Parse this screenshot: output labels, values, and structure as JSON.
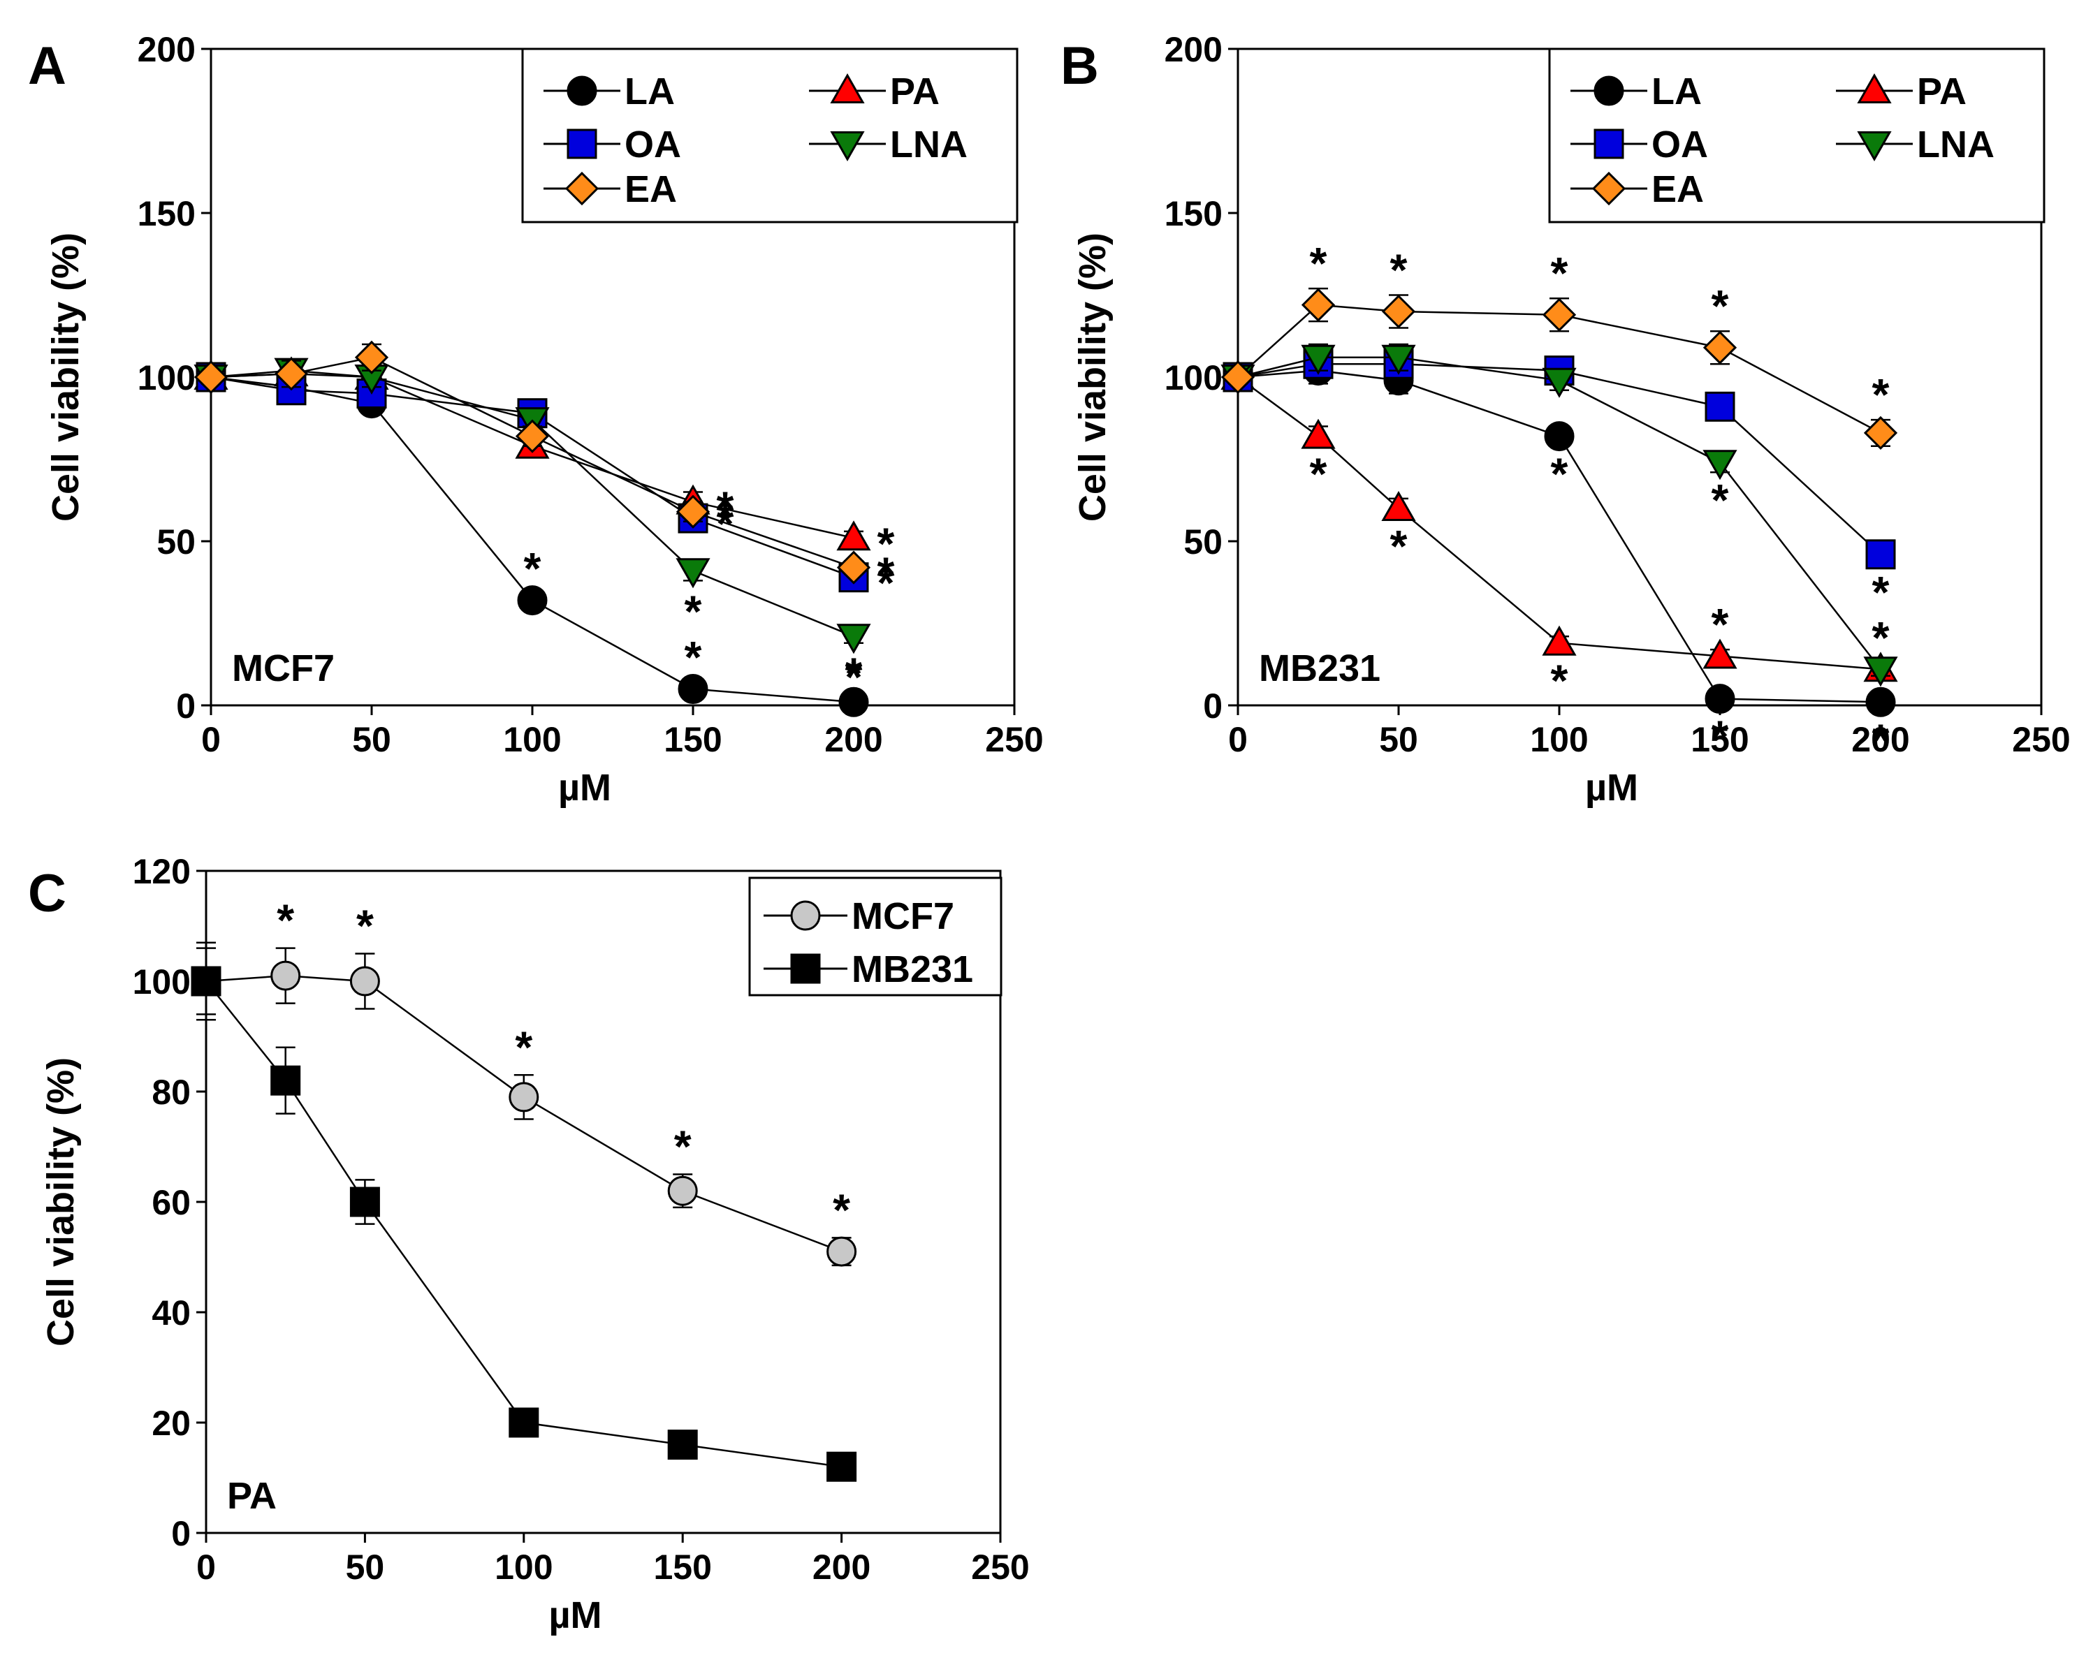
{
  "chart_data": [
    {
      "type": "line",
      "panel": "A",
      "label": "MCF7",
      "xlabel": "µM",
      "ylabel": "Cell viability (%)",
      "xlim": [
        0,
        250
      ],
      "ylim": [
        0,
        200
      ],
      "xticks": [
        0,
        50,
        100,
        150,
        200,
        250
      ],
      "yticks": [
        0,
        50,
        100,
        150,
        200
      ],
      "legend_columns": 2,
      "series": [
        {
          "name": "LA",
          "marker": "circle",
          "color": "#000000",
          "x": [
            0,
            25,
            50,
            100,
            150,
            200
          ],
          "y": [
            100,
            97,
            92,
            32,
            5,
            1
          ],
          "err": [
            2,
            4,
            3,
            2,
            2,
            1
          ],
          "stars": [
            false,
            false,
            false,
            true,
            true,
            true
          ]
        },
        {
          "name": "PA",
          "marker": "triangle-up",
          "color": "#ff0000",
          "x": [
            0,
            25,
            50,
            100,
            150,
            200
          ],
          "y": [
            100,
            101,
            100,
            79,
            62,
            51
          ],
          "err": [
            2,
            3,
            3,
            3,
            3,
            2
          ],
          "stars": [
            false,
            false,
            false,
            false,
            true,
            true
          ]
        },
        {
          "name": "OA",
          "marker": "square",
          "color": "#0000dd",
          "x": [
            0,
            25,
            50,
            100,
            150,
            200
          ],
          "y": [
            100,
            96,
            95,
            89,
            57,
            39
          ],
          "err": [
            2,
            4,
            4,
            4,
            3,
            2
          ],
          "stars": [
            false,
            false,
            false,
            false,
            true,
            true
          ]
        },
        {
          "name": "LNA",
          "marker": "triangle-down",
          "color": "#0a7a0a",
          "x": [
            0,
            25,
            50,
            100,
            150,
            200
          ],
          "y": [
            100,
            102,
            100,
            87,
            41,
            21
          ],
          "err": [
            2,
            3,
            3,
            3,
            3,
            2
          ],
          "stars": [
            false,
            false,
            false,
            false,
            true,
            true
          ]
        },
        {
          "name": "EA",
          "marker": "diamond",
          "color": "#ff8c19",
          "x": [
            0,
            25,
            50,
            100,
            150,
            200
          ],
          "y": [
            100,
            101,
            106,
            82,
            59,
            42
          ],
          "err": [
            2,
            4,
            4,
            3,
            3,
            2
          ],
          "stars": [
            false,
            false,
            false,
            false,
            true,
            true
          ]
        }
      ]
    },
    {
      "type": "line",
      "panel": "B",
      "label": "MB231",
      "xlabel": "µM",
      "ylabel": "Cell viability (%)",
      "xlim": [
        0,
        250
      ],
      "ylim": [
        0,
        200
      ],
      "xticks": [
        0,
        50,
        100,
        150,
        200,
        250
      ],
      "yticks": [
        0,
        50,
        100,
        150,
        200
      ],
      "legend_columns": 2,
      "series": [
        {
          "name": "LA",
          "marker": "circle",
          "color": "#000000",
          "x": [
            0,
            25,
            50,
            100,
            150,
            200
          ],
          "y": [
            100,
            102,
            99,
            82,
            2,
            1
          ],
          "err": [
            2,
            4,
            4,
            3,
            2,
            1
          ],
          "stars": [
            false,
            false,
            false,
            true,
            true,
            true
          ]
        },
        {
          "name": "PA",
          "marker": "triangle-up",
          "color": "#ff0000",
          "x": [
            0,
            25,
            50,
            100,
            150,
            200
          ],
          "y": [
            100,
            82,
            60,
            19,
            15,
            11
          ],
          "err": [
            2,
            3,
            3,
            2,
            2,
            2
          ],
          "stars": [
            false,
            true,
            true,
            true,
            true,
            true
          ]
        },
        {
          "name": "OA",
          "marker": "square",
          "color": "#0000dd",
          "x": [
            0,
            25,
            50,
            100,
            150,
            200
          ],
          "y": [
            100,
            104,
            104,
            102,
            91,
            46
          ],
          "err": [
            2,
            4,
            4,
            3,
            3,
            3
          ],
          "stars": [
            false,
            false,
            false,
            false,
            false,
            true
          ]
        },
        {
          "name": "LNA",
          "marker": "triangle-down",
          "color": "#0a7a0a",
          "x": [
            0,
            25,
            50,
            100,
            150,
            200
          ],
          "y": [
            100,
            106,
            106,
            99,
            74,
            11
          ],
          "err": [
            2,
            4,
            4,
            3,
            3,
            2
          ],
          "stars": [
            false,
            false,
            false,
            false,
            true,
            true
          ]
        },
        {
          "name": "EA",
          "marker": "diamond",
          "color": "#ff8c19",
          "x": [
            0,
            25,
            50,
            100,
            150,
            200
          ],
          "y": [
            100,
            122,
            120,
            119,
            109,
            83
          ],
          "err": [
            2,
            5,
            5,
            5,
            5,
            4
          ],
          "stars": [
            false,
            true,
            true,
            true,
            true,
            true
          ]
        }
      ]
    },
    {
      "type": "line",
      "panel": "C",
      "label": "PA",
      "xlabel": "µM",
      "ylabel": "Cell viability (%)",
      "xlim": [
        0,
        250
      ],
      "ylim": [
        0,
        120
      ],
      "xticks": [
        0,
        50,
        100,
        150,
        200,
        250
      ],
      "yticks": [
        0,
        20,
        40,
        60,
        80,
        100,
        120
      ],
      "legend_columns": 1,
      "series": [
        {
          "name": "MCF7",
          "marker": "circle",
          "color": "#c8c8c8",
          "x": [
            0,
            25,
            50,
            100,
            150,
            200
          ],
          "y": [
            100,
            101,
            100,
            79,
            62,
            51
          ],
          "err": [
            6,
            5,
            5,
            4,
            3,
            2.5
          ],
          "stars": [
            false,
            true,
            true,
            true,
            true,
            true
          ]
        },
        {
          "name": "MB231",
          "marker": "square",
          "color": "#000000",
          "x": [
            0,
            25,
            50,
            100,
            150,
            200
          ],
          "y": [
            100,
            82,
            60,
            20,
            16,
            12
          ],
          "err": [
            7,
            6,
            4,
            1.5,
            1.5,
            1
          ],
          "stars": [
            false,
            false,
            false,
            false,
            false,
            false
          ]
        }
      ]
    }
  ]
}
